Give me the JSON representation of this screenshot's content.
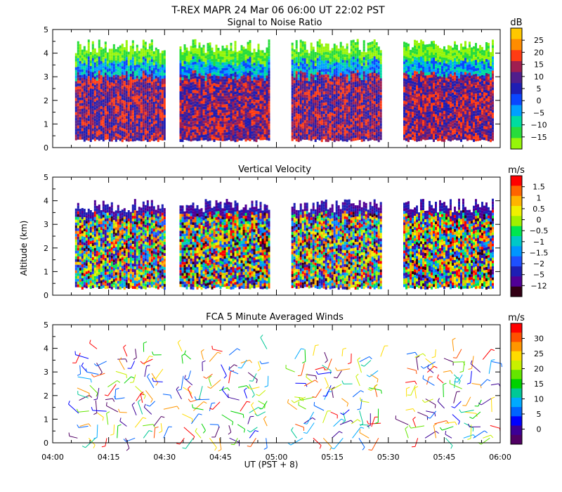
{
  "figure": {
    "title": "T-REX   MAPR 24 Mar 06   06:00 UT   22:02   PST",
    "xlabel": "UT  (PST + 8)",
    "ylabel": "Altitude (km)",
    "x_ticks": [
      "04:00",
      "04:15",
      "04:30",
      "04:45",
      "05:00",
      "05:15",
      "05:30",
      "05:45",
      "06:00"
    ]
  },
  "chart_data": [
    {
      "type": "heatmap",
      "title": "Signal to Noise Ratio",
      "ylabel": "Altitude (km)",
      "xlabel": "UT  (PST + 8)",
      "x_range_minutes": [
        0,
        120
      ],
      "ylim": [
        0,
        5
      ],
      "y_ticks": [
        "0",
        "1",
        "2",
        "3",
        "4",
        "5"
      ],
      "units": "dB",
      "colorbar_ticks": [
        "25",
        "20",
        "15",
        "10",
        "5",
        "0",
        "−5",
        "−10",
        "−15"
      ],
      "colorbar_colors": [
        "#ffc800",
        "#ff8c00",
        "#ff3c14",
        "#a01e50",
        "#501e8c",
        "#1e1eb4",
        "#0a46ff",
        "#00a0ff",
        "#00dca0",
        "#28dc3c",
        "#96f50a"
      ],
      "data_segments_minutes": [
        [
          6,
          30
        ],
        [
          34,
          58
        ],
        [
          64,
          88
        ],
        [
          94,
          118
        ]
      ],
      "data_bottom_km": 0.35,
      "data_top_km_approx": 4.3
    },
    {
      "type": "heatmap",
      "title": "Vertical Velocity",
      "ylabel": "Altitude (km)",
      "xlabel": "UT  (PST + 8)",
      "x_range_minutes": [
        0,
        120
      ],
      "ylim": [
        0,
        5
      ],
      "y_ticks": [
        "0",
        "1",
        "2",
        "3",
        "4",
        "5"
      ],
      "units": "m/s",
      "colorbar_ticks": [
        "1.5",
        "1",
        "0.5",
        "0",
        "−0.5",
        "−1",
        "−1.5",
        "−2",
        "−5",
        "−12"
      ],
      "colorbar_colors": [
        "#ff0000",
        "#ff6400",
        "#ffb400",
        "#f0f000",
        "#a0f000",
        "#00e650",
        "#00c8c8",
        "#0096ff",
        "#1e50ff",
        "#1e1eb4",
        "#500096",
        "#320014"
      ],
      "data_segments_minutes": [
        [
          6,
          30
        ],
        [
          34,
          58
        ],
        [
          64,
          88
        ],
        [
          94,
          118
        ]
      ],
      "data_bottom_km": 0.35,
      "data_top_km_approx": 3.8
    },
    {
      "type": "scatter",
      "title": "FCA 5 Minute Averaged Winds",
      "ylabel": "Altitude (km)",
      "xlabel": "UT  (PST + 8)",
      "x_range_minutes": [
        0,
        120
      ],
      "ylim": [
        0,
        5
      ],
      "y_ticks": [
        "0",
        "1",
        "2",
        "3",
        "4",
        "5"
      ],
      "units": "m/s",
      "colorbar_ticks": [
        "30",
        "25",
        "20",
        "15",
        "10",
        "5",
        "0"
      ],
      "colorbar_colors": [
        "#ff0000",
        "#ff5000",
        "#ff9600",
        "#ffdc00",
        "#c8f000",
        "#64e600",
        "#00d200",
        "#00c896",
        "#00aaff",
        "#0064ff",
        "#0000ff",
        "#3c0096",
        "#500064"
      ],
      "data_segments_minutes": [
        [
          6,
          30
        ],
        [
          34,
          58
        ],
        [
          64,
          88
        ],
        [
          94,
          118
        ]
      ],
      "wind_barb_altitude_range_km": [
        0.2,
        4.0
      ]
    }
  ]
}
